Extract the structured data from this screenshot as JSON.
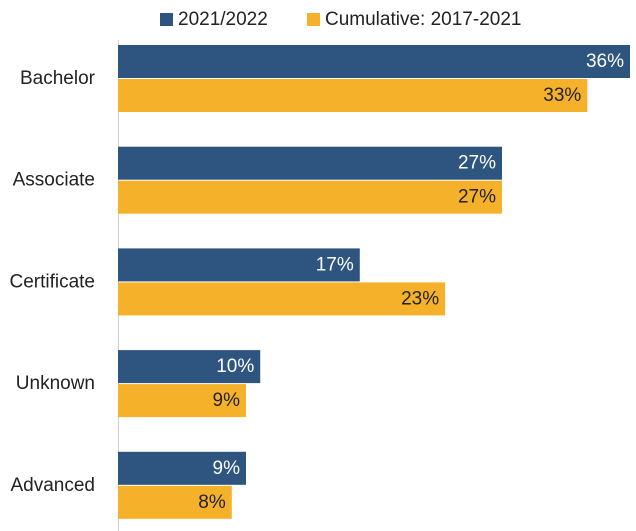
{
  "chart_data": {
    "type": "bar",
    "orientation": "horizontal",
    "categories": [
      "Bachelor",
      "Associate",
      "Certificate",
      "Unknown",
      "Advanced"
    ],
    "series": [
      {
        "name": "2021/2022",
        "color": "#2e5580",
        "values": [
          36,
          27,
          17,
          10,
          9
        ],
        "value_labels": [
          "36%",
          "27%",
          "17%",
          "10%",
          "9%"
        ]
      },
      {
        "name": "Cumulative: 2017-2021",
        "color": "#f5b12a",
        "values": [
          33,
          27,
          23,
          9,
          8
        ],
        "value_labels": [
          "33%",
          "27%",
          "23%",
          "9%",
          "8%"
        ]
      }
    ]
  }
}
